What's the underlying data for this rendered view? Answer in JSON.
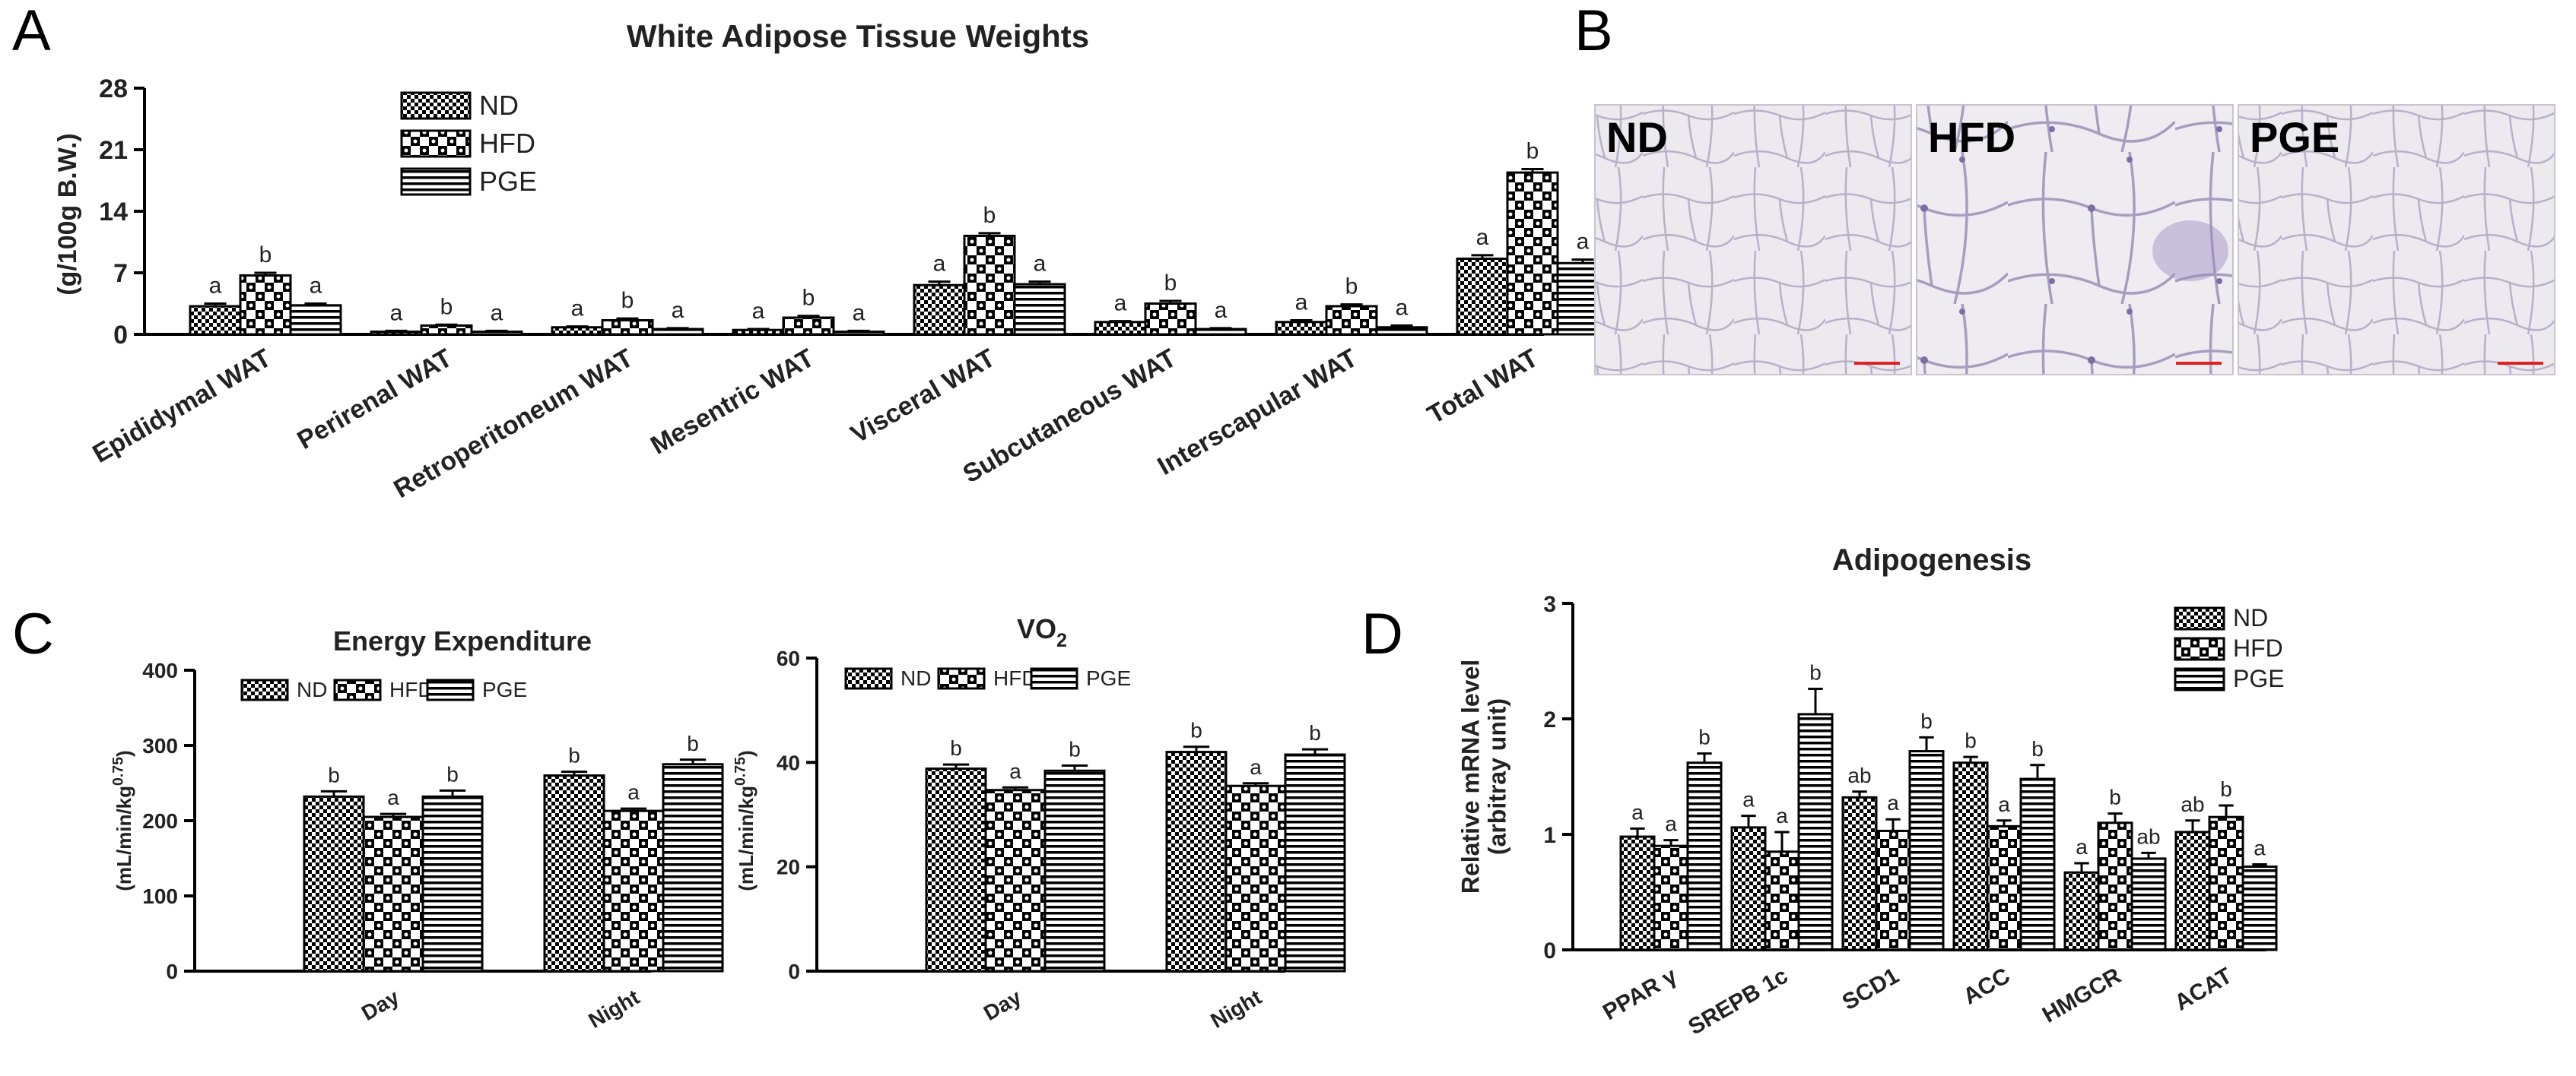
{
  "panels": {
    "a": "A",
    "b": "B",
    "c": "C",
    "d": "D"
  },
  "histology": {
    "labels": [
      "ND",
      "HFD",
      "PGE"
    ]
  },
  "chart_data": [
    {
      "id": "A",
      "type": "bar",
      "title": "White Adipose Tissue Weights",
      "ylabel": "(g/100g B.W.)",
      "xlabel": "",
      "ylim": [
        0,
        28
      ],
      "yticks": [
        "0",
        "7",
        "14",
        "21",
        "28"
      ],
      "ytick_values": [
        0,
        7,
        14,
        21,
        28
      ],
      "legend": [
        "ND",
        "HFD",
        "PGE"
      ],
      "categories": [
        "Epididymal WAT",
        "Perirenal WAT",
        "Retroperitoneum WAT",
        "Mesentric WAT",
        "Visceral WAT",
        "Subcutaneous WAT",
        "Interscapular WAT",
        "Total WAT"
      ],
      "series": [
        {
          "name": "ND",
          "values": [
            3.2,
            0.3,
            0.8,
            0.5,
            5.6,
            1.4,
            1.4,
            8.6
          ],
          "errors": [
            0.3,
            0.1,
            0.1,
            0.1,
            0.4,
            0.1,
            0.2,
            0.4
          ],
          "labels": [
            "a",
            "a",
            "a",
            "a",
            "a",
            "a",
            "a",
            "a"
          ]
        },
        {
          "name": "HFD",
          "values": [
            6.7,
            1.0,
            1.6,
            1.9,
            11.2,
            3.5,
            3.2,
            18.4
          ],
          "errors": [
            0.3,
            0.1,
            0.2,
            0.2,
            0.3,
            0.3,
            0.2,
            0.4
          ],
          "labels": [
            "b",
            "b",
            "b",
            "b",
            "b",
            "b",
            "b",
            "b"
          ]
        },
        {
          "name": "PGE",
          "values": [
            3.3,
            0.3,
            0.6,
            0.3,
            5.7,
            0.6,
            0.8,
            8.1
          ],
          "errors": [
            0.2,
            0.1,
            0.1,
            0.1,
            0.3,
            0.1,
            0.2,
            0.4
          ],
          "labels": [
            "a",
            "a",
            "a",
            "a",
            "a",
            "a",
            "a",
            "a"
          ]
        }
      ]
    },
    {
      "id": "C1",
      "type": "bar",
      "title": "Energy Expenditure",
      "ylabel": "(mL/min/kg^0.75)",
      "ylabel_main": "(mL/min/kg",
      "ylabel_sup": "0.75",
      "ylabel_close": ")",
      "xlabel": "",
      "ylim": [
        0,
        400
      ],
      "yticks": [
        "0",
        "100",
        "200",
        "300",
        "400"
      ],
      "ytick_values": [
        0,
        100,
        200,
        300,
        400
      ],
      "legend": [
        "ND",
        "HFD",
        "PGE"
      ],
      "categories": [
        "Day",
        "Night"
      ],
      "series": [
        {
          "name": "ND",
          "values": [
            232,
            260
          ],
          "errors": [
            7,
            5
          ],
          "labels": [
            "b",
            "b"
          ]
        },
        {
          "name": "HFD",
          "values": [
            205,
            213
          ],
          "errors": [
            4,
            3
          ],
          "labels": [
            "a",
            "a"
          ]
        },
        {
          "name": "PGE",
          "values": [
            232,
            275
          ],
          "errors": [
            8,
            6
          ],
          "labels": [
            "b",
            "b"
          ]
        }
      ]
    },
    {
      "id": "C2",
      "type": "bar",
      "title": "VO2",
      "title_main": "VO",
      "title_sub": "2",
      "ylabel": "(mL/min/kg^0.75)",
      "ylabel_main": "(mL/min/kg",
      "ylabel_sup": "0.75",
      "ylabel_close": ")",
      "xlabel": "",
      "ylim": [
        0,
        60
      ],
      "yticks": [
        "0",
        "20",
        "40",
        "60"
      ],
      "ytick_values": [
        0,
        20,
        40,
        60
      ],
      "legend": [
        "ND",
        "HFD",
        "PGE"
      ],
      "categories": [
        "Day",
        "Night"
      ],
      "series": [
        {
          "name": "ND",
          "values": [
            38.8,
            42.0
          ],
          "errors": [
            0.8,
            1.0
          ],
          "labels": [
            "b",
            "b"
          ]
        },
        {
          "name": "HFD",
          "values": [
            34.7,
            35.5
          ],
          "errors": [
            0.5,
            0.5
          ],
          "labels": [
            "a",
            "a"
          ]
        },
        {
          "name": "PGE",
          "values": [
            38.4,
            41.5
          ],
          "errors": [
            1.0,
            1.0
          ],
          "labels": [
            "b",
            "b"
          ]
        }
      ]
    },
    {
      "id": "D",
      "type": "bar",
      "title": "Adipogenesis",
      "ylabel": "Relative mRNA level",
      "ylabel2": "(arbitray unit)",
      "xlabel": "",
      "ylim": [
        0,
        3
      ],
      "yticks": [
        "0",
        "1",
        "2",
        "3"
      ],
      "ytick_values": [
        0,
        1,
        2,
        3
      ],
      "legend": [
        "ND",
        "HFD",
        "PGE"
      ],
      "categories": [
        "PPAR γ",
        "SREPB 1c",
        "SCD1",
        "ACC",
        "HMGCR",
        "ACAT"
      ],
      "series": [
        {
          "name": "ND",
          "values": [
            0.98,
            1.06,
            1.32,
            1.62,
            0.67,
            1.02
          ],
          "errors": [
            0.07,
            0.1,
            0.05,
            0.05,
            0.08,
            0.1
          ],
          "labels": [
            "a",
            "a",
            "ab",
            "b",
            "a",
            "ab"
          ]
        },
        {
          "name": "HFD",
          "values": [
            0.9,
            0.85,
            1.03,
            1.07,
            1.1,
            1.15
          ],
          "errors": [
            0.05,
            0.17,
            0.1,
            0.05,
            0.08,
            0.1
          ],
          "labels": [
            "a",
            "a",
            "a",
            "a",
            "b",
            "b"
          ]
        },
        {
          "name": "PGE",
          "values": [
            1.62,
            2.04,
            1.72,
            1.48,
            0.79,
            0.72
          ],
          "errors": [
            0.08,
            0.22,
            0.12,
            0.12,
            0.05,
            0.02
          ],
          "labels": [
            "b",
            "b",
            "b",
            "b",
            "ab",
            "a"
          ]
        }
      ]
    }
  ]
}
